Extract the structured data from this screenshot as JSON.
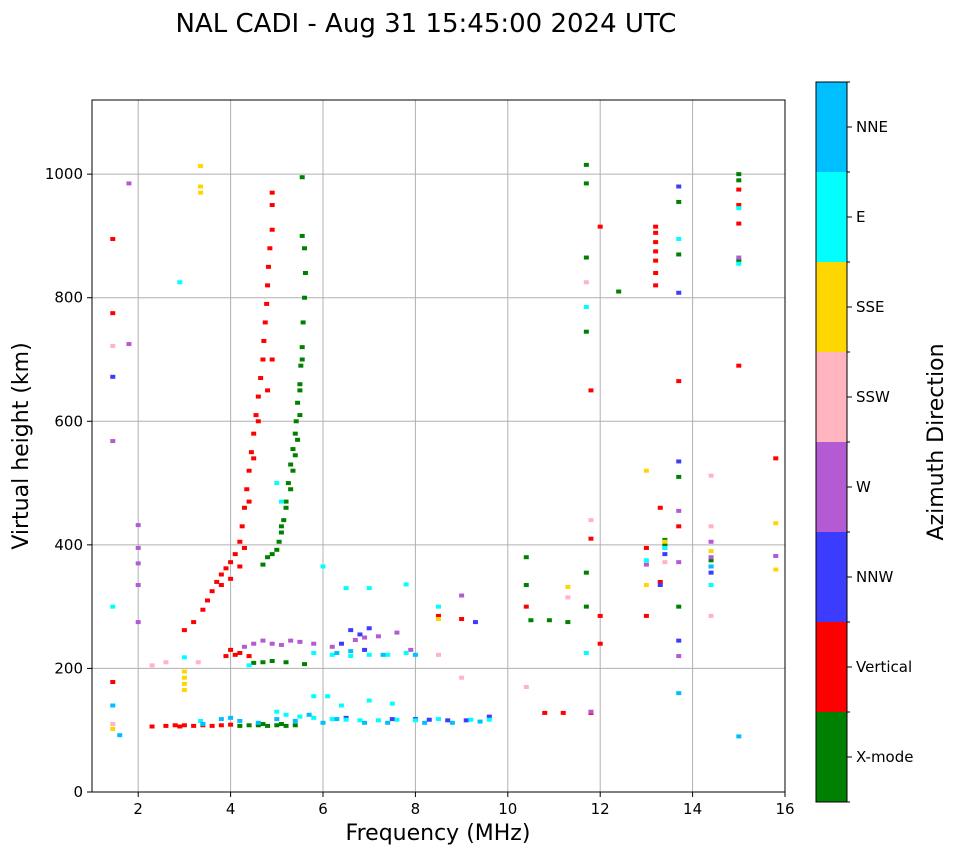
{
  "chart_data": {
    "type": "scatter",
    "title": "NAL CADI - Aug 31 15:45:00 2024 UTC",
    "xlabel": "Frequency (MHz)",
    "ylabel": "Virtual height (km)",
    "xlim": [
      1,
      16
    ],
    "ylim": [
      0,
      1120
    ],
    "xticks": [
      2,
      4,
      6,
      8,
      10,
      12,
      14,
      16
    ],
    "yticks": [
      0,
      200,
      400,
      600,
      800,
      1000
    ],
    "grid": true,
    "colorbar": {
      "label": "Azimuth Direction",
      "categories": [
        "X-mode",
        "Vertical",
        "NNW",
        "W",
        "SSW",
        "SSE",
        "E",
        "NNE"
      ],
      "colors": [
        "#008000",
        "#ff0000",
        "#3c3cff",
        "#b45ad2",
        "#ffb4c0",
        "#ffd700",
        "#00ffff",
        "#00bfff"
      ]
    },
    "series": [
      {
        "name": "X-mode",
        "color": "#008000",
        "points": [
          [
            4.4,
            108
          ],
          [
            4.6,
            108
          ],
          [
            4.8,
            107
          ],
          [
            5.0,
            108
          ],
          [
            5.2,
            107
          ],
          [
            5.4,
            108
          ],
          [
            4.2,
            107
          ],
          [
            4.7,
            110
          ],
          [
            5.1,
            110
          ],
          [
            4.7,
            210
          ],
          [
            4.9,
            212
          ],
          [
            5.2,
            210
          ],
          [
            5.6,
            207
          ],
          [
            4.5,
            209
          ],
          [
            4.7,
            368
          ],
          [
            4.8,
            380
          ],
          [
            4.9,
            385
          ],
          [
            5.0,
            392
          ],
          [
            5.1,
            420
          ],
          [
            5.15,
            440
          ],
          [
            5.2,
            470
          ],
          [
            5.25,
            500
          ],
          [
            5.3,
            530
          ],
          [
            5.35,
            555
          ],
          [
            5.4,
            580
          ],
          [
            5.42,
            600
          ],
          [
            5.45,
            630
          ],
          [
            5.5,
            660
          ],
          [
            5.52,
            690
          ],
          [
            5.55,
            720
          ],
          [
            5.57,
            760
          ],
          [
            5.6,
            800
          ],
          [
            5.62,
            840
          ],
          [
            5.6,
            880
          ],
          [
            5.55,
            900
          ],
          [
            5.55,
            995
          ],
          [
            5.05,
            405
          ],
          [
            5.1,
            430
          ],
          [
            5.2,
            460
          ],
          [
            5.3,
            490
          ],
          [
            5.35,
            520
          ],
          [
            5.4,
            545
          ],
          [
            5.45,
            570
          ],
          [
            5.5,
            610
          ],
          [
            5.5,
            650
          ],
          [
            5.55,
            700
          ],
          [
            10.4,
            380
          ],
          [
            10.4,
            335
          ],
          [
            10.5,
            278
          ],
          [
            10.9,
            278
          ],
          [
            11.3,
            275
          ],
          [
            11.7,
            300
          ],
          [
            11.7,
            355
          ],
          [
            11.7,
            745
          ],
          [
            11.7,
            865
          ],
          [
            11.7,
            985
          ],
          [
            11.7,
            1015
          ],
          [
            12.4,
            810
          ],
          [
            13.4,
            408
          ],
          [
            13.4,
            400
          ],
          [
            13.7,
            510
          ],
          [
            13.7,
            300
          ],
          [
            13.7,
            870
          ],
          [
            13.7,
            955
          ],
          [
            15.0,
            1000
          ],
          [
            15.0,
            990
          ],
          [
            15.0,
            860
          ],
          [
            14.4,
            375
          ]
        ]
      },
      {
        "name": "Vertical",
        "color": "#ff0000",
        "points": [
          [
            2.3,
            106
          ],
          [
            2.6,
            107
          ],
          [
            2.8,
            108
          ],
          [
            3.0,
            108
          ],
          [
            3.2,
            107
          ],
          [
            3.4,
            108
          ],
          [
            3.6,
            107
          ],
          [
            3.8,
            108
          ],
          [
            4.0,
            109
          ],
          [
            2.9,
            106
          ],
          [
            3.9,
            220
          ],
          [
            4.1,
            222
          ],
          [
            4.2,
            225
          ],
          [
            4.4,
            220
          ],
          [
            4.0,
            230
          ],
          [
            3.0,
            262
          ],
          [
            3.2,
            275
          ],
          [
            3.4,
            295
          ],
          [
            3.5,
            310
          ],
          [
            3.6,
            325
          ],
          [
            3.7,
            340
          ],
          [
            3.8,
            352
          ],
          [
            3.9,
            362
          ],
          [
            4.0,
            372
          ],
          [
            4.1,
            385
          ],
          [
            4.2,
            405
          ],
          [
            4.25,
            430
          ],
          [
            4.3,
            460
          ],
          [
            4.35,
            490
          ],
          [
            4.4,
            520
          ],
          [
            4.45,
            550
          ],
          [
            4.5,
            580
          ],
          [
            4.55,
            610
          ],
          [
            4.6,
            640
          ],
          [
            4.65,
            670
          ],
          [
            4.7,
            700
          ],
          [
            4.72,
            730
          ],
          [
            4.75,
            760
          ],
          [
            4.78,
            790
          ],
          [
            4.8,
            820
          ],
          [
            4.82,
            850
          ],
          [
            4.85,
            880
          ],
          [
            4.9,
            910
          ],
          [
            4.9,
            950
          ],
          [
            4.9,
            970
          ],
          [
            3.8,
            335
          ],
          [
            4.0,
            345
          ],
          [
            4.2,
            365
          ],
          [
            4.3,
            395
          ],
          [
            4.4,
            470
          ],
          [
            4.5,
            540
          ],
          [
            4.6,
            600
          ],
          [
            4.8,
            650
          ],
          [
            4.9,
            700
          ],
          [
            1.45,
            895
          ],
          [
            1.45,
            775
          ],
          [
            1.45,
            178
          ],
          [
            9.0,
            280
          ],
          [
            8.5,
            285
          ],
          [
            10.4,
            300
          ],
          [
            10.8,
            128
          ],
          [
            11.2,
            128
          ],
          [
            11.8,
            128
          ],
          [
            11.8,
            410
          ],
          [
            11.8,
            650
          ],
          [
            12.0,
            285
          ],
          [
            12.0,
            240
          ],
          [
            12.0,
            915
          ],
          [
            13.0,
            395
          ],
          [
            13.0,
            285
          ],
          [
            13.3,
            460
          ],
          [
            13.3,
            340
          ],
          [
            13.7,
            430
          ],
          [
            13.7,
            665
          ],
          [
            13.2,
            820
          ],
          [
            13.2,
            840
          ],
          [
            13.2,
            860
          ],
          [
            13.2,
            875
          ],
          [
            13.2,
            890
          ],
          [
            13.2,
            905
          ],
          [
            13.2,
            915
          ],
          [
            15.0,
            920
          ],
          [
            15.0,
            950
          ],
          [
            15.0,
            975
          ],
          [
            15.0,
            690
          ],
          [
            15.8,
            540
          ]
        ]
      },
      {
        "name": "NNW",
        "color": "#3c3cff",
        "points": [
          [
            6.6,
            262
          ],
          [
            6.8,
            255
          ],
          [
            7.0,
            265
          ],
          [
            6.4,
            240
          ],
          [
            6.9,
            230
          ],
          [
            8.0,
            118
          ],
          [
            8.3,
            117
          ],
          [
            8.7,
            116
          ],
          [
            9.1,
            116
          ],
          [
            9.6,
            122
          ],
          [
            6.5,
            120
          ],
          [
            7.5,
            118
          ],
          [
            1.45,
            672
          ],
          [
            9.3,
            275
          ],
          [
            13.4,
            385
          ],
          [
            13.3,
            335
          ],
          [
            13.7,
            980
          ],
          [
            13.7,
            808
          ],
          [
            13.7,
            535
          ],
          [
            13.7,
            245
          ],
          [
            14.4,
            355
          ]
        ]
      },
      {
        "name": "W",
        "color": "#b45ad2",
        "points": [
          [
            4.5,
            240
          ],
          [
            4.7,
            245
          ],
          [
            4.9,
            240
          ],
          [
            5.1,
            238
          ],
          [
            5.3,
            245
          ],
          [
            5.5,
            243
          ],
          [
            4.3,
            235
          ],
          [
            5.8,
            240
          ],
          [
            6.7,
            246
          ],
          [
            6.9,
            250
          ],
          [
            7.2,
            252
          ],
          [
            7.6,
            258
          ],
          [
            6.2,
            235
          ],
          [
            7.9,
            230
          ],
          [
            2.0,
            432
          ],
          [
            2.0,
            395
          ],
          [
            2.0,
            370
          ],
          [
            2.0,
            335
          ],
          [
            2.0,
            275
          ],
          [
            1.8,
            985
          ],
          [
            1.8,
            725
          ],
          [
            1.45,
            568
          ],
          [
            9.0,
            318
          ],
          [
            11.8,
            130
          ],
          [
            13.4,
            395
          ],
          [
            13.0,
            368
          ],
          [
            13.7,
            455
          ],
          [
            13.7,
            372
          ],
          [
            13.7,
            220
          ],
          [
            14.4,
            405
          ],
          [
            14.4,
            380
          ],
          [
            14.4,
            365
          ],
          [
            15.0,
            865
          ],
          [
            15.8,
            382
          ]
        ]
      },
      {
        "name": "SSW",
        "color": "#ffb4c0",
        "points": [
          [
            2.3,
            205
          ],
          [
            2.6,
            210
          ],
          [
            3.3,
            210
          ],
          [
            1.45,
            722
          ],
          [
            8.5,
            222
          ],
          [
            9.0,
            185
          ],
          [
            10.4,
            170
          ],
          [
            11.3,
            315
          ],
          [
            11.7,
            825
          ],
          [
            11.8,
            440
          ],
          [
            14.4,
            512
          ],
          [
            14.4,
            430
          ],
          [
            14.4,
            285
          ],
          [
            13.4,
            372
          ],
          [
            1.45,
            110
          ]
        ]
      },
      {
        "name": "SSE",
        "color": "#ffd700",
        "points": [
          [
            3.0,
            165
          ],
          [
            3.0,
            175
          ],
          [
            3.0,
            185
          ],
          [
            3.0,
            195
          ],
          [
            3.35,
            1013
          ],
          [
            3.35,
            980
          ],
          [
            3.35,
            970
          ],
          [
            8.5,
            280
          ],
          [
            11.3,
            332
          ],
          [
            13.0,
            520
          ],
          [
            13.0,
            335
          ],
          [
            13.4,
            405
          ],
          [
            14.4,
            390
          ],
          [
            15.8,
            435
          ],
          [
            15.8,
            360
          ],
          [
            1.45,
            102
          ]
        ]
      },
      {
        "name": "E",
        "color": "#00ffff",
        "points": [
          [
            5.2,
            125
          ],
          [
            5.5,
            122
          ],
          [
            5.8,
            120
          ],
          [
            6.2,
            118
          ],
          [
            6.5,
            117
          ],
          [
            6.8,
            116
          ],
          [
            7.2,
            116
          ],
          [
            7.6,
            117
          ],
          [
            8.0,
            116
          ],
          [
            8.5,
            118
          ],
          [
            9.2,
            117
          ],
          [
            9.6,
            117
          ],
          [
            5.0,
            130
          ],
          [
            6.4,
            140
          ],
          [
            7.0,
            148
          ],
          [
            7.5,
            143
          ],
          [
            5.8,
            155
          ],
          [
            6.1,
            155
          ],
          [
            5.8,
            225
          ],
          [
            6.2,
            222
          ],
          [
            6.6,
            220
          ],
          [
            7.0,
            222
          ],
          [
            7.4,
            222
          ],
          [
            7.8,
            225
          ],
          [
            6.5,
            330
          ],
          [
            7.0,
            330
          ],
          [
            7.8,
            336
          ],
          [
            6.0,
            365
          ],
          [
            1.45,
            300
          ],
          [
            3.0,
            218
          ],
          [
            3.35,
            115
          ],
          [
            2.9,
            825
          ],
          [
            5.0,
            500
          ],
          [
            5.1,
            470
          ],
          [
            8.5,
            300
          ],
          [
            11.7,
            225
          ],
          [
            11.7,
            785
          ],
          [
            13.0,
            375
          ],
          [
            13.4,
            395
          ],
          [
            13.7,
            895
          ],
          [
            14.4,
            335
          ],
          [
            15.0,
            945
          ],
          [
            15.0,
            855
          ],
          [
            4.4,
            205
          ]
        ]
      },
      {
        "name": "NNE",
        "color": "#00bfff",
        "points": [
          [
            3.8,
            118
          ],
          [
            4.0,
            120
          ],
          [
            4.2,
            115
          ],
          [
            4.6,
            112
          ],
          [
            5.0,
            118
          ],
          [
            5.4,
            115
          ],
          [
            5.7,
            125
          ],
          [
            6.0,
            112
          ],
          [
            6.3,
            118
          ],
          [
            6.9,
            112
          ],
          [
            7.4,
            112
          ],
          [
            8.2,
            112
          ],
          [
            8.8,
            112
          ],
          [
            9.4,
            114
          ],
          [
            3.4,
            110
          ],
          [
            6.3,
            225
          ],
          [
            6.6,
            228
          ],
          [
            7.3,
            222
          ],
          [
            8.0,
            222
          ],
          [
            1.6,
            92
          ],
          [
            13.7,
            160
          ],
          [
            15.0,
            90
          ],
          [
            14.4,
            365
          ],
          [
            1.45,
            140
          ]
        ]
      }
    ]
  }
}
